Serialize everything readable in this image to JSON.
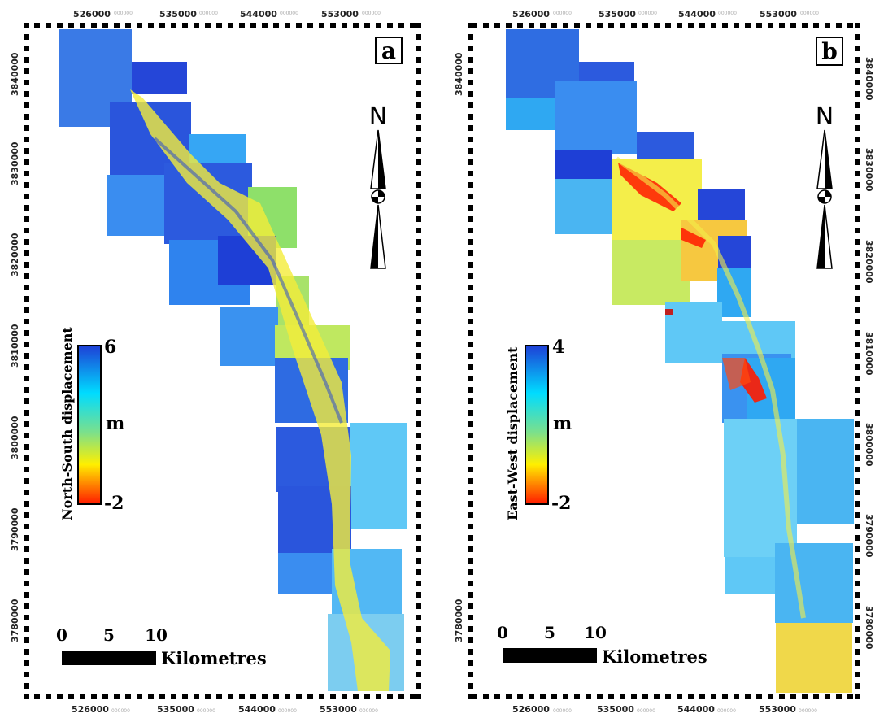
{
  "panels": [
    {
      "label": "a",
      "legend_title": "North-South displacement",
      "legend_max": "6",
      "legend_unit": "m",
      "legend_min": "-2",
      "north": "N",
      "scale": {
        "t0": "0",
        "t1": "5",
        "t2": "10",
        "unit": "Kilometres"
      },
      "x_ticks": [
        "526000",
        "535000",
        "544000",
        "553000"
      ],
      "y_ticks": [
        "3840000",
        "3830000",
        "3820000",
        "3810000",
        "3800000",
        "3790000",
        "3780000"
      ],
      "tick_suffix": "000000"
    },
    {
      "label": "b",
      "legend_title": "East-West displacement",
      "legend_max": "4",
      "legend_unit": "m",
      "legend_min": "-2",
      "north": "N",
      "scale": {
        "t0": "0",
        "t1": "5",
        "t2": "10",
        "unit": "Kilometres"
      },
      "x_ticks": [
        "526000",
        "535000",
        "544000",
        "553000"
      ],
      "y_ticks": [
        "3840000",
        "3830000",
        "3820000",
        "3810000",
        "3800000",
        "3790000",
        "3780000"
      ],
      "tick_suffix": "000000"
    }
  ],
  "colors": {
    "high": "#1e3fd6",
    "mid": "#00dcff",
    "green": "#7de08a",
    "yellow": "#ffef00",
    "low": "#ff1a00"
  }
}
